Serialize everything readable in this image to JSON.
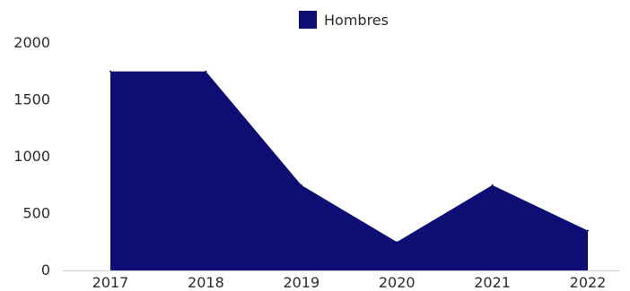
{
  "chart_data": {
    "type": "area",
    "title": "",
    "xlabel": "",
    "ylabel": "",
    "categories": [
      "2017",
      "2018",
      "2019",
      "2020",
      "2021",
      "2022"
    ],
    "series": [
      {
        "name": "Hombres",
        "values": [
          1750,
          1750,
          750,
          250,
          750,
          350
        ],
        "color": "#0d0d73"
      }
    ],
    "ylim": [
      0,
      2000
    ],
    "yticks": [
      0,
      500,
      1000,
      1500,
      2000
    ],
    "grid": false,
    "legend_position": "top-center",
    "axis_color": "#cccccc"
  }
}
